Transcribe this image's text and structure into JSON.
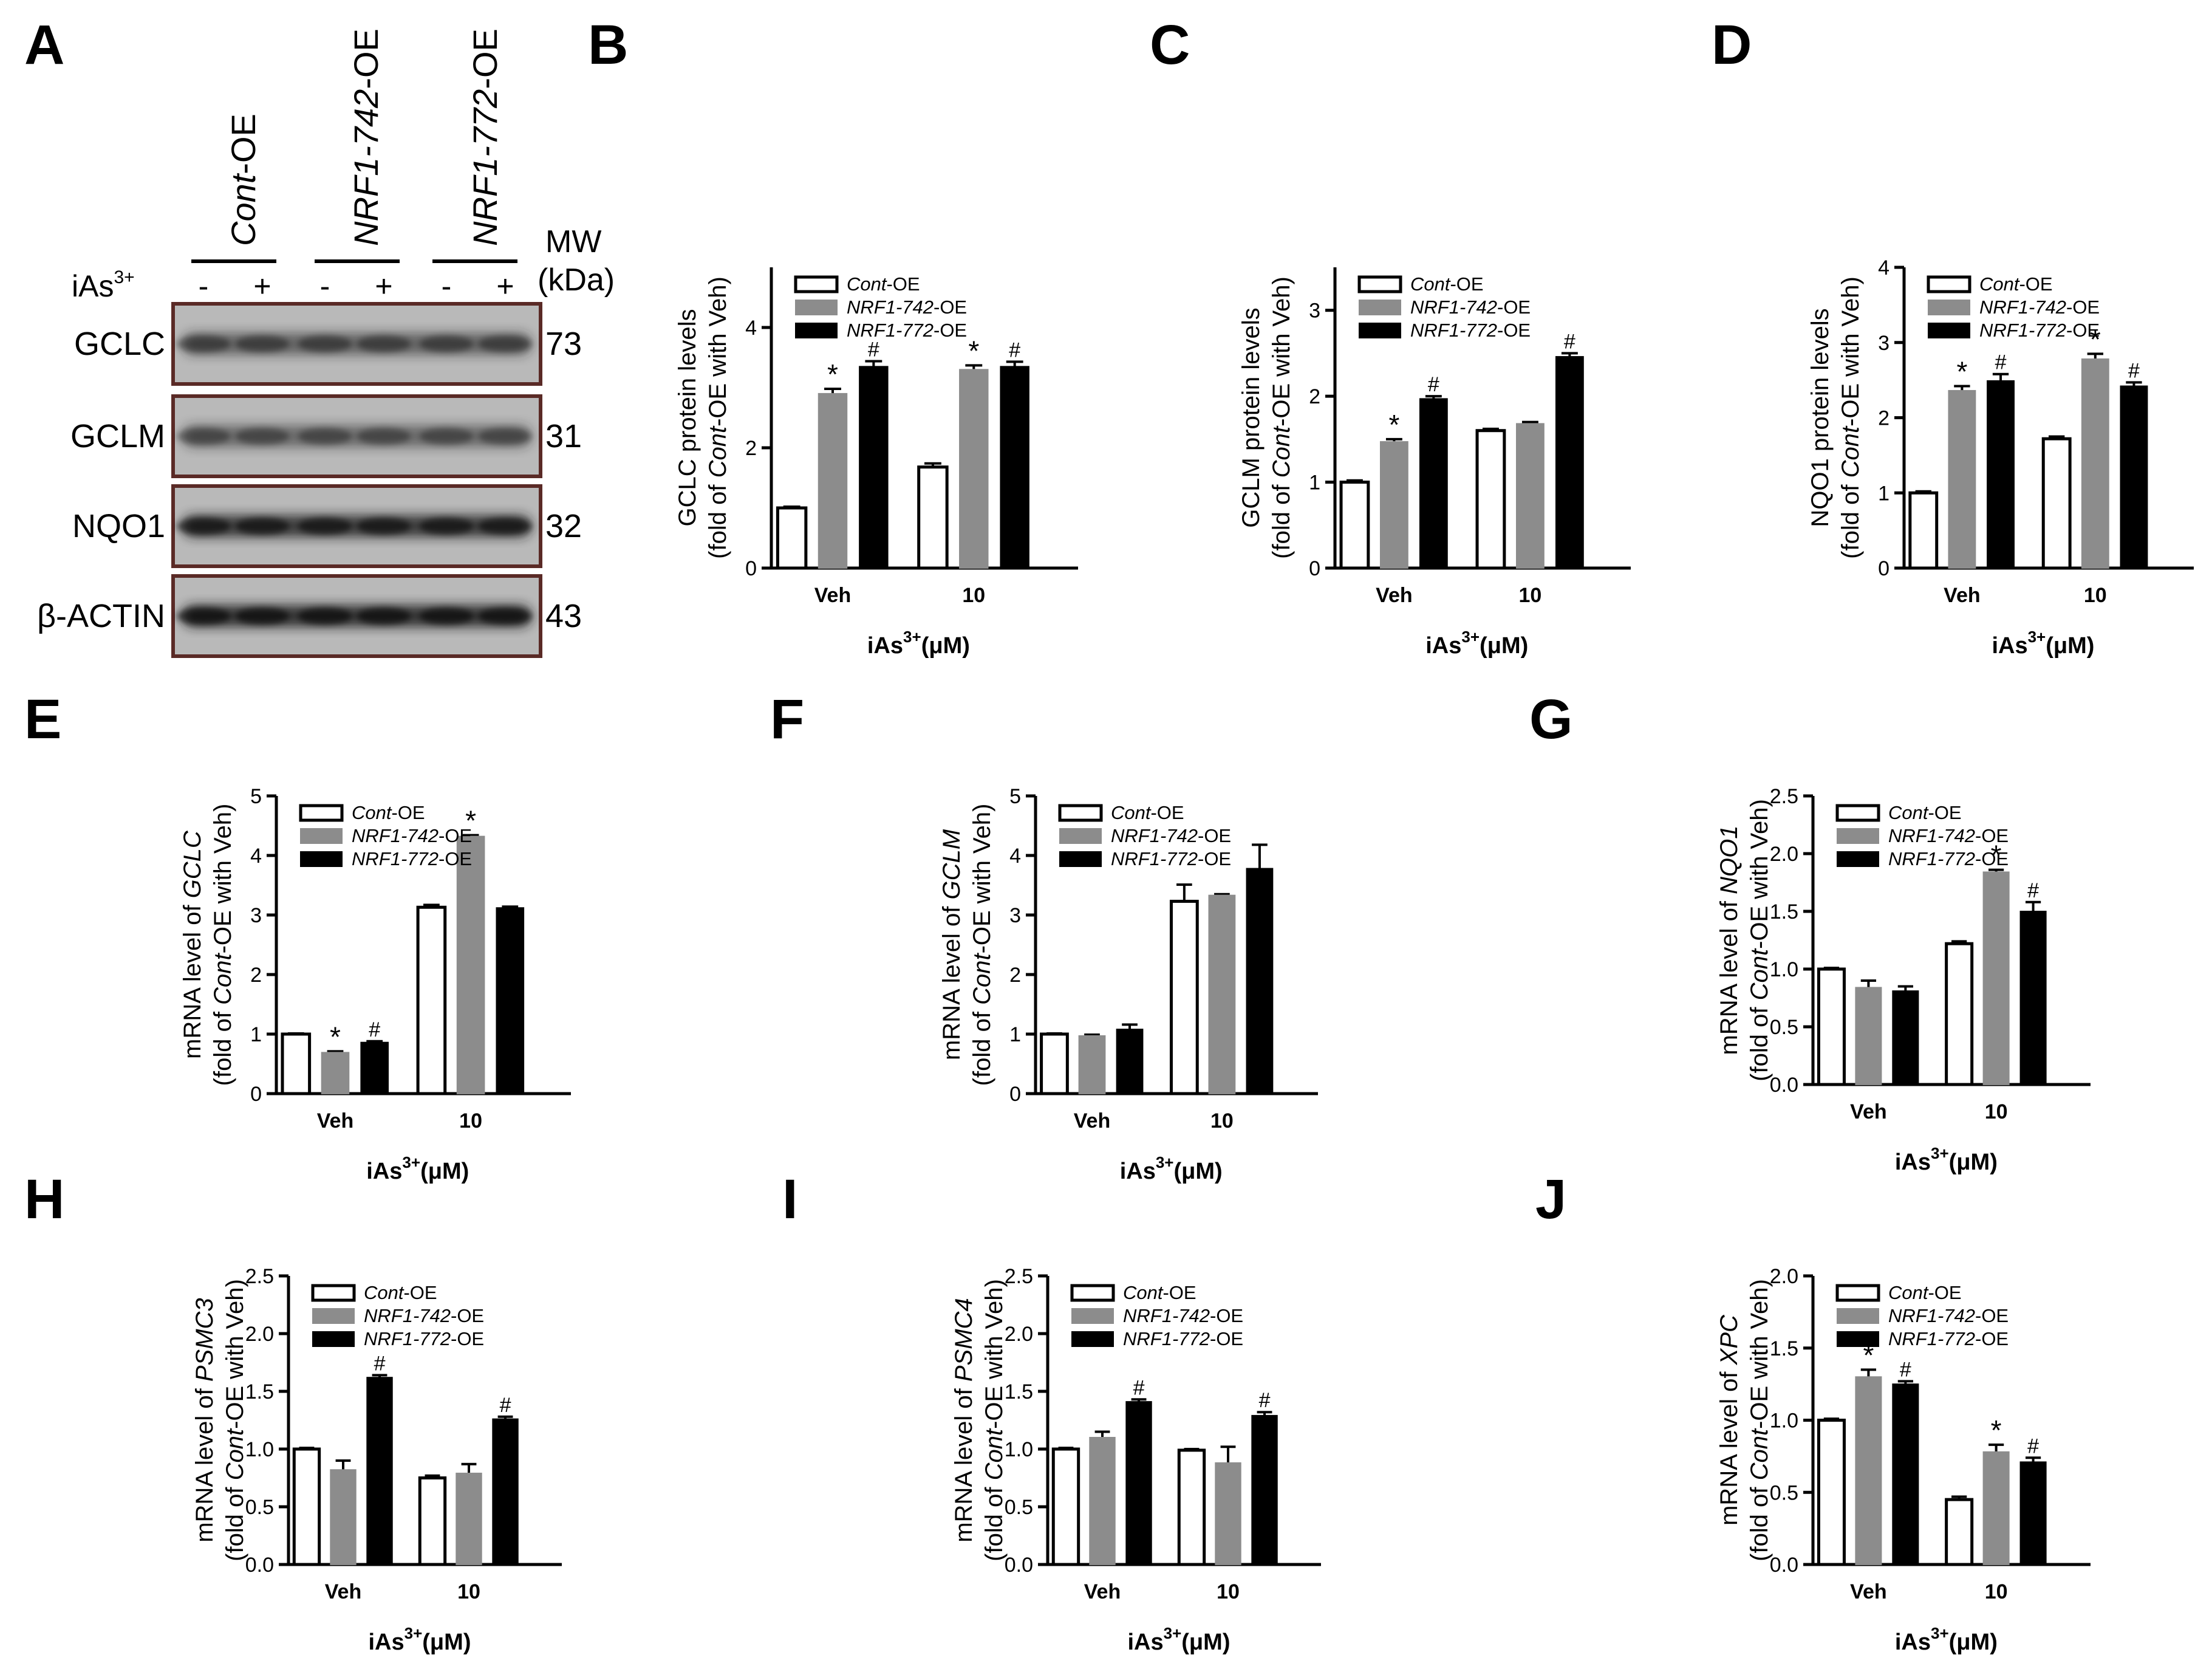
{
  "panel_letters": [
    "A",
    "B",
    "C",
    "D",
    "E",
    "F",
    "G",
    "H",
    "I",
    "J"
  ],
  "blot": {
    "lane_groups": [
      {
        "italic": "Cont",
        "rest": "-OE"
      },
      {
        "italic": "NRF1-742",
        "rest": "-OE"
      },
      {
        "italic": "NRF1-772",
        "rest": "-OE"
      }
    ],
    "treatment_label": "iAs",
    "treatment_sup": "3+",
    "lane_signs": [
      "-",
      "+",
      "-",
      "+",
      "-",
      "+"
    ],
    "mw_header": [
      "MW",
      "(kDa)"
    ],
    "rows": [
      {
        "label": "GCLC",
        "mw": "73"
      },
      {
        "label": "GCLM",
        "mw": "31"
      },
      {
        "label": "NQO1",
        "mw": "32"
      },
      {
        "label": "β-ACTIN",
        "mw": "43"
      }
    ]
  },
  "legend_entries": [
    {
      "italic": "Cont",
      "rest": "-OE"
    },
    {
      "italic": "NRF1-742",
      "rest": "-OE"
    },
    {
      "italic": "NRF1-772",
      "rest": "-OE"
    }
  ],
  "colors": {
    "cont": "#ffffff",
    "nrf742": "#8c8c8c",
    "nrf772": "#000000"
  },
  "chart_data": [
    {
      "panel": "B",
      "type": "bar",
      "categories": [
        "Veh",
        "10"
      ],
      "ylabel": [
        {
          "t": "GCLC protein levels"
        },
        {
          "t": "(fold of ",
          "i": "Cont",
          "r": "-OE with Veh)"
        }
      ],
      "xlabel": "iAs",
      "xlabel_sup": "3+",
      "xlabel_unit": "(μM)",
      "ylim": [
        0,
        5
      ],
      "yticks": [
        0,
        2,
        4
      ],
      "ytick_labels": [
        "0",
        "2",
        "4"
      ],
      "series": [
        {
          "values": [
            1.0,
            1.68
          ],
          "errors": [
            0.02,
            0.06
          ],
          "marks": [
            "",
            ""
          ]
        },
        {
          "values": [
            2.9,
            3.3
          ],
          "errors": [
            0.08,
            0.07
          ],
          "marks": [
            "*",
            "*"
          ]
        },
        {
          "values": [
            3.35,
            3.35
          ],
          "errors": [
            0.09,
            0.08
          ],
          "marks": [
            "#",
            "#"
          ]
        }
      ]
    },
    {
      "panel": "C",
      "type": "bar",
      "categories": [
        "Veh",
        "10"
      ],
      "ylabel": [
        {
          "t": "GCLM protein levels"
        },
        {
          "t": "(fold of ",
          "i": "Cont",
          "r": "-OE with Veh)"
        }
      ],
      "xlabel": "iAs",
      "xlabel_sup": "3+",
      "xlabel_unit": "(μM)",
      "ylim": [
        0,
        3.5
      ],
      "yticks": [
        0,
        1,
        2,
        3
      ],
      "ytick_labels": [
        "0",
        "1",
        "2",
        "3"
      ],
      "series": [
        {
          "values": [
            1.0,
            1.6
          ],
          "errors": [
            0.02,
            0.02
          ],
          "marks": [
            "",
            ""
          ]
        },
        {
          "values": [
            1.47,
            1.68
          ],
          "errors": [
            0.03,
            0.02
          ],
          "marks": [
            "*",
            ""
          ]
        },
        {
          "values": [
            1.97,
            2.46
          ],
          "errors": [
            0.03,
            0.04
          ],
          "marks": [
            "#",
            "#"
          ]
        }
      ]
    },
    {
      "panel": "D",
      "type": "bar",
      "categories": [
        "Veh",
        "10"
      ],
      "ylabel": [
        {
          "t": "NQO1 protein levels"
        },
        {
          "t": "(fold of ",
          "i": "Cont",
          "r": "-OE with Veh)"
        }
      ],
      "xlabel": "iAs",
      "xlabel_sup": "3+",
      "xlabel_unit": "(μM)",
      "ylim": [
        0,
        4
      ],
      "yticks": [
        0,
        1,
        2,
        3,
        4
      ],
      "ytick_labels": [
        "0",
        "1",
        "2",
        "3",
        "4"
      ],
      "series": [
        {
          "values": [
            1.0,
            1.72
          ],
          "errors": [
            0.02,
            0.03
          ],
          "marks": [
            "",
            ""
          ]
        },
        {
          "values": [
            2.36,
            2.78
          ],
          "errors": [
            0.06,
            0.07
          ],
          "marks": [
            "*",
            "*"
          ]
        },
        {
          "values": [
            2.49,
            2.42
          ],
          "errors": [
            0.09,
            0.05
          ],
          "marks": [
            "#",
            "#"
          ]
        }
      ]
    },
    {
      "panel": "E",
      "type": "bar",
      "categories": [
        "Veh",
        "10"
      ],
      "ylabel": [
        {
          "t": "mRNA level of ",
          "i": "GCLC"
        },
        {
          "t": "(fold of ",
          "i": "Cont",
          "r": "-OE with Veh)"
        }
      ],
      "xlabel": "iAs",
      "xlabel_sup": "3+",
      "xlabel_unit": "(μM)",
      "ylim": [
        0,
        5
      ],
      "yticks": [
        0,
        1,
        2,
        3,
        4,
        5
      ],
      "ytick_labels": [
        "0",
        "1",
        "2",
        "3",
        "4",
        "5"
      ],
      "series": [
        {
          "values": [
            1.0,
            3.13
          ],
          "errors": [
            0.01,
            0.04
          ],
          "marks": [
            "",
            ""
          ]
        },
        {
          "values": [
            0.69,
            4.32
          ],
          "errors": [
            0.02,
            0.02
          ],
          "marks": [
            "*",
            "*"
          ]
        },
        {
          "values": [
            0.86,
            3.12
          ],
          "errors": [
            0.02,
            0.02
          ],
          "marks": [
            "#",
            ""
          ]
        }
      ]
    },
    {
      "panel": "F",
      "type": "bar",
      "categories": [
        "Veh",
        "10"
      ],
      "ylabel": [
        {
          "t": "mRNA level of ",
          "i": "GCLM"
        },
        {
          "t": "(fold of ",
          "i": "Cont",
          "r": "-OE with Veh)"
        }
      ],
      "xlabel": "iAs",
      "xlabel_sup": "3+",
      "xlabel_unit": "(μM)",
      "ylim": [
        0,
        5
      ],
      "yticks": [
        0,
        1,
        2,
        3,
        4,
        5
      ],
      "ytick_labels": [
        "0",
        "1",
        "2",
        "3",
        "4",
        "5"
      ],
      "series": [
        {
          "values": [
            1.0,
            3.23
          ],
          "errors": [
            0.01,
            0.28
          ],
          "marks": [
            "",
            ""
          ]
        },
        {
          "values": [
            0.97,
            3.33
          ],
          "errors": [
            0.02,
            0.02
          ],
          "marks": [
            "",
            ""
          ]
        },
        {
          "values": [
            1.08,
            3.78
          ],
          "errors": [
            0.08,
            0.4
          ],
          "marks": [
            "",
            ""
          ]
        }
      ]
    },
    {
      "panel": "G",
      "type": "bar",
      "categories": [
        "Veh",
        "10"
      ],
      "ylabel": [
        {
          "t": "mRNA level of ",
          "i": "NQO1"
        },
        {
          "t": "(fold of ",
          "i": "Cont",
          "r": "-OE with Veh)"
        }
      ],
      "xlabel": "iAs",
      "xlabel_sup": "3+",
      "xlabel_unit": "(μM)",
      "ylim": [
        0,
        2.5
      ],
      "yticks": [
        0,
        0.5,
        1,
        1.5,
        2,
        2.5
      ],
      "ytick_labels": [
        "0.0",
        "0.5",
        "1.0",
        "1.5",
        "2.0",
        "2.5"
      ],
      "series": [
        {
          "values": [
            1.0,
            1.22
          ],
          "errors": [
            0.01,
            0.02
          ],
          "marks": [
            "",
            ""
          ]
        },
        {
          "values": [
            0.84,
            1.84
          ],
          "errors": [
            0.06,
            0.02
          ],
          "marks": [
            "",
            "*"
          ]
        },
        {
          "values": [
            0.81,
            1.5
          ],
          "errors": [
            0.04,
            0.08
          ],
          "marks": [
            "",
            "#"
          ]
        }
      ]
    },
    {
      "panel": "H",
      "type": "bar",
      "categories": [
        "Veh",
        "10"
      ],
      "ylabel": [
        {
          "t": "mRNA level of ",
          "i": "PSMC3"
        },
        {
          "t": "(fold of ",
          "i": "Cont",
          "r": "-OE with Veh)"
        }
      ],
      "xlabel": "iAs",
      "xlabel_sup": "3+",
      "xlabel_unit": "(μM)",
      "ylim": [
        0,
        2.5
      ],
      "yticks": [
        0,
        0.5,
        1,
        1.5,
        2,
        2.5
      ],
      "ytick_labels": [
        "0.0",
        "0.5",
        "1.0",
        "1.5",
        "2.0",
        "2.5"
      ],
      "series": [
        {
          "values": [
            1.0,
            0.75
          ],
          "errors": [
            0.01,
            0.02
          ],
          "marks": [
            "",
            ""
          ]
        },
        {
          "values": [
            0.82,
            0.79
          ],
          "errors": [
            0.08,
            0.08
          ],
          "marks": [
            "",
            ""
          ]
        },
        {
          "values": [
            1.62,
            1.26
          ],
          "errors": [
            0.02,
            0.02
          ],
          "marks": [
            "#",
            "#"
          ]
        }
      ]
    },
    {
      "panel": "I",
      "type": "bar",
      "categories": [
        "Veh",
        "10"
      ],
      "ylabel": [
        {
          "t": "mRNA level of ",
          "i": "PSMC4"
        },
        {
          "t": "(fold of ",
          "i": "Cont",
          "r": "-OE with Veh)"
        }
      ],
      "xlabel": "iAs",
      "xlabel_sup": "3+",
      "xlabel_unit": "(μM)",
      "ylim": [
        0,
        2.5
      ],
      "yticks": [
        0,
        0.5,
        1,
        1.5,
        2,
        2.5
      ],
      "ytick_labels": [
        "0.0",
        "0.5",
        "1.0",
        "1.5",
        "2.0",
        "2.5"
      ],
      "series": [
        {
          "values": [
            1.0,
            0.99
          ],
          "errors": [
            0.01,
            0.01
          ],
          "marks": [
            "",
            ""
          ]
        },
        {
          "values": [
            1.1,
            0.88
          ],
          "errors": [
            0.05,
            0.14
          ],
          "marks": [
            "",
            ""
          ]
        },
        {
          "values": [
            1.41,
            1.29
          ],
          "errors": [
            0.02,
            0.03
          ],
          "marks": [
            "#",
            "#"
          ]
        }
      ]
    },
    {
      "panel": "J",
      "type": "bar",
      "categories": [
        "Veh",
        "10"
      ],
      "ylabel": [
        {
          "t": "mRNA level of ",
          "i": "XPC"
        },
        {
          "t": "(fold of ",
          "i": "Cont",
          "r": "-OE with Veh)"
        }
      ],
      "xlabel": "iAs",
      "xlabel_sup": "3+",
      "xlabel_unit": "(μM)",
      "ylim": [
        0,
        2
      ],
      "yticks": [
        0,
        0.5,
        1,
        1.5,
        2
      ],
      "ytick_labels": [
        "0.0",
        "0.5",
        "1.0",
        "1.5",
        "2.0"
      ],
      "series": [
        {
          "values": [
            1.0,
            0.45
          ],
          "errors": [
            0.01,
            0.02
          ],
          "marks": [
            "",
            ""
          ]
        },
        {
          "values": [
            1.3,
            0.78
          ],
          "errors": [
            0.05,
            0.05
          ],
          "marks": [
            "*",
            "*"
          ]
        },
        {
          "values": [
            1.25,
            0.71
          ],
          "errors": [
            0.02,
            0.03
          ],
          "marks": [
            "#",
            "#"
          ]
        }
      ]
    }
  ]
}
